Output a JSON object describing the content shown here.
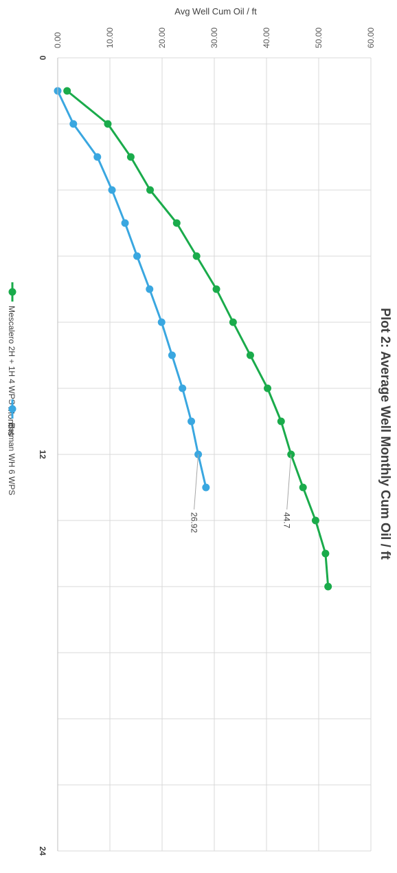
{
  "chart_data": {
    "type": "line",
    "title": "Plot 2: Average Well Monthly Cum Oil / ft",
    "xlabel": "Months",
    "ylabel": "Avg Well Cum Oil / ft",
    "xlim": [
      0,
      24
    ],
    "ylim": [
      0,
      60
    ],
    "x_ticks": [
      "0",
      "12",
      "24"
    ],
    "y_ticks": [
      "0.00",
      "10.00",
      "20.00",
      "30.00",
      "40.00",
      "50.00",
      "60.00"
    ],
    "grid": true,
    "orientation": "rotated 90 degrees clockwise",
    "legend_position": "bottom",
    "series": [
      {
        "name": "Mescalero 2H + 1H 4 WPS",
        "color": "#1aab4b",
        "x": [
          1,
          2,
          3,
          4,
          5,
          6,
          7,
          8,
          9,
          10,
          11,
          12,
          13,
          14,
          15,
          16
        ],
        "y": [
          1.8,
          9.6,
          14.0,
          17.7,
          22.8,
          26.6,
          30.4,
          33.6,
          36.9,
          40.2,
          42.8,
          44.7,
          47.0,
          49.4,
          51.3,
          51.8
        ],
        "end_label": "44.7"
      },
      {
        "name": "Batman WH 6 WPS",
        "color": "#3aa7e0",
        "x": [
          1,
          2,
          3,
          4,
          5,
          6,
          7,
          8,
          9,
          10,
          11,
          12,
          13
        ],
        "y": [
          0.0,
          3.0,
          7.6,
          10.4,
          12.9,
          15.2,
          17.6,
          19.9,
          21.9,
          23.9,
          25.6,
          26.92,
          28.4
        ],
        "end_label": "26.92"
      }
    ]
  }
}
